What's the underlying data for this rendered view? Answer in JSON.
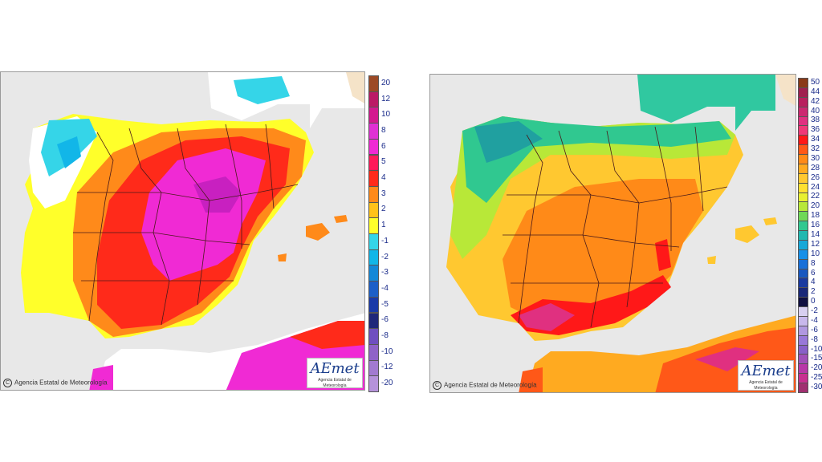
{
  "maps": [
    {
      "credit": "Agencia Estatal de Meteorología",
      "logo_text": "AEmet",
      "logo_subtext": "Agencia Estatal de Meteorología",
      "legend": {
        "labels": [
          "20",
          "12",
          "10",
          "8",
          "6",
          "5",
          "4",
          "3",
          "2",
          "1",
          "-1",
          "-2",
          "-3",
          "-4",
          "-5",
          "-6",
          "-8",
          "-10",
          "-12",
          "-20"
        ],
        "colors": [
          "#9c4a26",
          "#bb1a66",
          "#d3198f",
          "#e030d4",
          "#f02ad4",
          "#ff1a5a",
          "#ff2a1a",
          "#ff8a1a",
          "#ffc21a",
          "#ffff2a",
          "#35d5e8",
          "#12b6e8",
          "#1488d8",
          "#1c5fc8",
          "#1a3aa8",
          "#20287a",
          "#6f4fc0",
          "#8f63c8",
          "#a27ad0",
          "#b592da"
        ]
      },
      "region_colors": {
        "sea": "#e8e8e8",
        "land_outside": "#ffffff",
        "warm_low": "#ffff2a",
        "warm_mid": "#ffc21a",
        "warm": "#ff8a1a",
        "hot": "#ff2a1a",
        "very_hot": "#f02ad4",
        "extreme": "#c820c0",
        "cool": "#35d5e8",
        "cold": "#12b6e8"
      }
    },
    {
      "credit": "Agencia Estatal de Meteorología",
      "logo_text": "AEmet",
      "logo_subtext": "Agencia Estatal de Meteorología",
      "legend": {
        "labels": [
          "50",
          "44",
          "42",
          "40",
          "38",
          "36",
          "34",
          "32",
          "30",
          "28",
          "26",
          "24",
          "22",
          "20",
          "18",
          "16",
          "14",
          "12",
          "10",
          "8",
          "6",
          "4",
          "2",
          "0",
          "-2",
          "-4",
          "-6",
          "-8",
          "-10",
          "-15",
          "-20",
          "-25",
          "-30"
        ],
        "colors": [
          "#8a3a18",
          "#a02050",
          "#b8205e",
          "#cc2870",
          "#e03080",
          "#f03878",
          "#ff1818",
          "#ff5818",
          "#ff8a18",
          "#ffaa20",
          "#ffc830",
          "#ffe030",
          "#e8f030",
          "#b8e838",
          "#70d858",
          "#30c890",
          "#20b8b0",
          "#18a8d8",
          "#1890e8",
          "#1870d8",
          "#1858c0",
          "#1a3aa0",
          "#1a2878",
          "#101040",
          "#d8d0f0",
          "#c8b8ec",
          "#b098e0",
          "#9878d8",
          "#8860c8",
          "#a050b8",
          "#b838a8",
          "#c83090",
          "#a03070"
        ]
      },
      "region_colors": {
        "sea": "#e8e8e8",
        "north": "#30c890",
        "north_dark": "#20a0a0",
        "mid": "#ffc830",
        "warm": "#ffaa20",
        "hot": "#ff8a18",
        "very_hot": "#ff1818",
        "extreme": "#e03080",
        "greenish": "#b8e838",
        "france": "#30c8a0"
      }
    }
  ]
}
